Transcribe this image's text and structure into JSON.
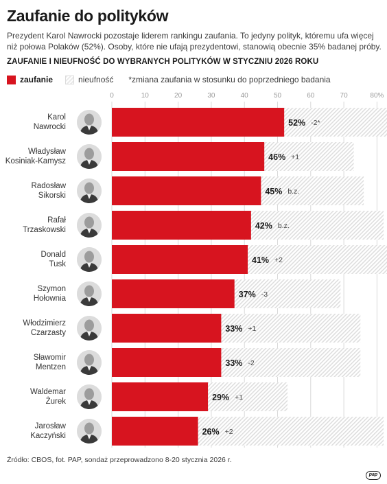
{
  "page": {
    "title": "Zaufanie do polityków",
    "intro": "Prezydent Karol Nawrocki pozostaje liderem rankingu zaufania. To jedyny polityk, któremu ufa więcej niż połowa Polaków (52%). Osoby, które nie ufają prezydentowi, stanowią obecnie 35% badanej próby.",
    "subtitle": "ZAUFANIE I NIEUFNOŚĆ DO WYBRANYCH POLITYKÓW W STYCZNIU 2026 ROKU",
    "source": "Źródło: CBOS, fot. PAP, sondaż przeprowadzono 8-20 stycznia 2026 r.",
    "logo": "pap"
  },
  "legend": {
    "trust": "zaufanie",
    "distrust": "nieufność",
    "note": "*zmiana zaufania w stosunku do poprzedniego badania"
  },
  "colors": {
    "trust": "#d7141f",
    "distrust_hatch": "#dedede",
    "grid": "#d9d9d9"
  },
  "chart_data": {
    "type": "bar",
    "orientation": "horizontal",
    "title": "ZAUFANIE I NIEUFNOŚĆ DO WYBRANYCH POLITYKÓW W STYCZNIU 2026 ROKU",
    "xlim": [
      0,
      80
    ],
    "ticks": [
      "0",
      "10",
      "20",
      "30",
      "40",
      "50",
      "60",
      "70",
      "80%"
    ],
    "grid": true,
    "legend_position": "top-left",
    "categories": [
      [
        "Karol",
        "Nawrocki"
      ],
      [
        "Władysław",
        "Kosiniak-Kamysz"
      ],
      [
        "Radosław",
        "Sikorski"
      ],
      [
        "Rafał",
        "Trzaskowski"
      ],
      [
        "Donald",
        "Tusk"
      ],
      [
        "Szymon",
        "Hołownia"
      ],
      [
        "Włodzimierz",
        "Czarzasty"
      ],
      [
        "Sławomir",
        "Mentzen"
      ],
      [
        "Waldemar",
        "Żurek"
      ],
      [
        "Jarosław",
        "Kaczyński"
      ]
    ],
    "series": [
      {
        "name": "zaufanie",
        "values": [
          52,
          46,
          45,
          42,
          41,
          37,
          33,
          33,
          29,
          26
        ]
      },
      {
        "name": "nieufność",
        "values": [
          35,
          27,
          31,
          40,
          46,
          32,
          42,
          42,
          24,
          56
        ]
      }
    ],
    "value_labels": [
      "52%",
      "46%",
      "45%",
      "42%",
      "41%",
      "37%",
      "33%",
      "33%",
      "29%",
      "26%"
    ],
    "changes": [
      "-2*",
      "+1",
      "b.z.",
      "b.z.",
      "+2",
      "-3",
      "+1",
      "-2",
      "+1",
      "+2"
    ]
  }
}
